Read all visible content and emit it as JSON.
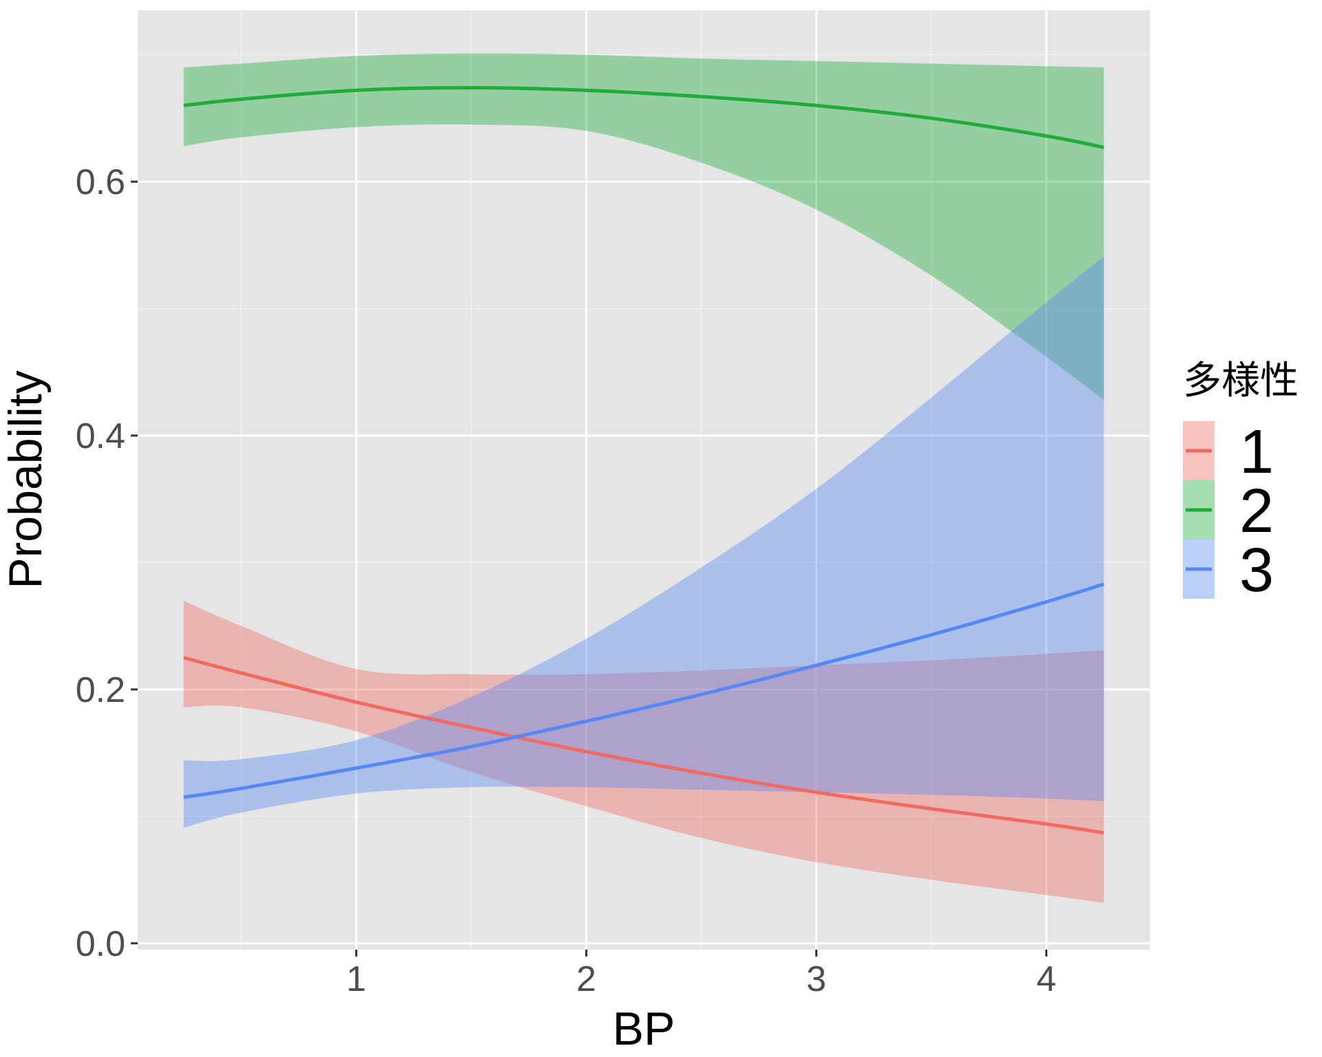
{
  "chart_data": {
    "type": "line",
    "xlabel": "BP",
    "ylabel": "Probability",
    "xlim": [
      0.05,
      4.45
    ],
    "ylim": [
      -0.005,
      0.735
    ],
    "x_ticks": [
      1,
      2,
      3,
      4
    ],
    "y_ticks": [
      0.0,
      0.2,
      0.4,
      0.6
    ],
    "x_tick_labels": [
      "1",
      "2",
      "3",
      "4"
    ],
    "y_tick_labels": [
      "0.0",
      "0.2",
      "0.4",
      "0.6"
    ],
    "grid": true,
    "background": "#e5e5e5",
    "legend": {
      "title": "多様性",
      "position": "right",
      "entries": [
        "1",
        "2",
        "3"
      ]
    },
    "x": [
      0.25,
      0.5,
      1.0,
      1.5,
      2.0,
      2.5,
      3.0,
      3.5,
      4.0,
      4.25
    ],
    "series": [
      {
        "name": "1",
        "color": "#f06a61",
        "fill": "#eeb0ae",
        "values": [
          0.225,
          0.213,
          0.19,
          0.17,
          0.151,
          0.134,
          0.119,
          0.106,
          0.094,
          0.087
        ],
        "lower": [
          0.186,
          0.186,
          0.167,
          0.135,
          0.108,
          0.083,
          0.064,
          0.05,
          0.038,
          0.032
        ],
        "upper": [
          0.27,
          0.25,
          0.216,
          0.212,
          0.212,
          0.215,
          0.219,
          0.223,
          0.228,
          0.231
        ]
      },
      {
        "name": "2",
        "color": "#1fac3a",
        "fill": "#93d399",
        "values": [
          0.66,
          0.665,
          0.672,
          0.674,
          0.672,
          0.667,
          0.66,
          0.65,
          0.636,
          0.627
        ],
        "lower": [
          0.628,
          0.635,
          0.643,
          0.645,
          0.64,
          0.615,
          0.578,
          0.526,
          0.462,
          0.428
        ],
        "upper": [
          0.69,
          0.693,
          0.699,
          0.701,
          0.7,
          0.697,
          0.695,
          0.693,
          0.691,
          0.69
        ]
      },
      {
        "name": "3",
        "color": "#5588f5",
        "fill": "#a9c0f2",
        "values": [
          0.115,
          0.122,
          0.138,
          0.155,
          0.175,
          0.196,
          0.219,
          0.243,
          0.269,
          0.283
        ],
        "lower": [
          0.091,
          0.103,
          0.118,
          0.123,
          0.123,
          0.121,
          0.119,
          0.117,
          0.114,
          0.112
        ],
        "upper": [
          0.144,
          0.145,
          0.16,
          0.194,
          0.24,
          0.296,
          0.358,
          0.43,
          0.505,
          0.541
        ]
      }
    ]
  }
}
